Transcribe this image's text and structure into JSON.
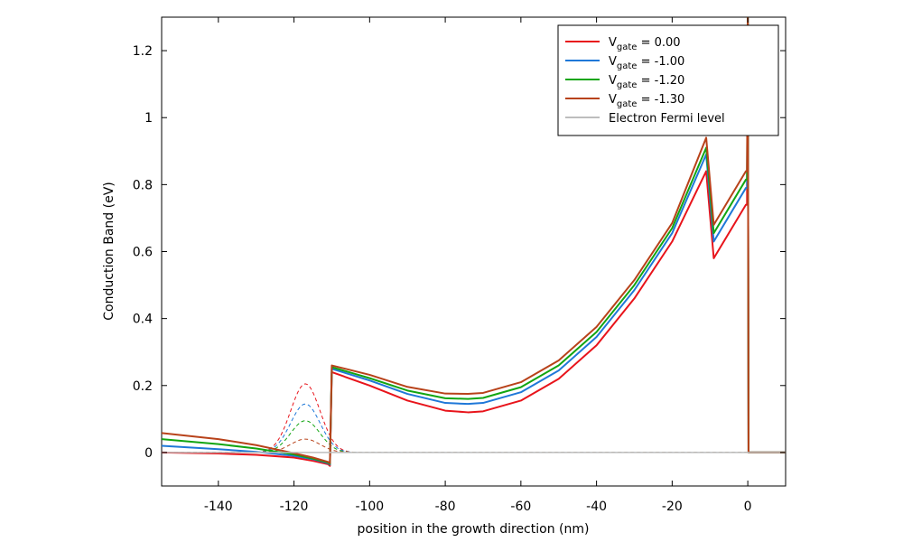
{
  "chart_data": {
    "type": "line",
    "title": "",
    "xlabel": "position in the growth direction (nm)",
    "ylabel": "Conduction Band (eV)",
    "xlim": [
      -155,
      10
    ],
    "ylim": [
      -0.1,
      1.3
    ],
    "grid": false,
    "legend_position": "top-right",
    "x_ticks": [
      -140,
      -120,
      -100,
      -80,
      -60,
      -40,
      -20,
      0
    ],
    "y_ticks": [
      0,
      0.2,
      0.4,
      0.6,
      0.8,
      1,
      1.2
    ],
    "x_tick_labels": [
      "-140",
      "-120",
      "-100",
      "-80",
      "-60",
      "-40",
      "-20",
      "0"
    ],
    "y_tick_labels": [
      "0",
      "0.2",
      "0.4",
      "0.6",
      "0.8",
      "1",
      "1.2"
    ],
    "series": [
      {
        "name": "V = 0.00",
        "legend_main": "V",
        "legend_sub": "gate",
        "legend_value": " =  0.00",
        "color": "#e8141b",
        "x": [
          -155,
          -140,
          -130,
          -120,
          -115,
          -111,
          -110.5,
          -110,
          -100,
          -90,
          -80,
          -74,
          -70,
          -60,
          -50,
          -40,
          -30,
          -20,
          -11,
          -9,
          -0.5,
          -0.2,
          0,
          0.2,
          10
        ],
        "y": [
          0.0,
          -0.003,
          -0.007,
          -0.015,
          -0.025,
          -0.035,
          -0.04,
          0.24,
          0.2,
          0.155,
          0.125,
          0.12,
          0.123,
          0.155,
          0.22,
          0.32,
          0.46,
          0.63,
          0.84,
          0.58,
          0.74,
          0.74,
          1.3,
          0,
          0
        ]
      },
      {
        "name": "V = -1.00",
        "legend_main": "V",
        "legend_sub": "gate",
        "legend_value": " = -1.00",
        "color": "#1f78d8",
        "x": [
          -155,
          -140,
          -130,
          -120,
          -115,
          -111,
          -110.5,
          -110,
          -100,
          -90,
          -80,
          -74,
          -70,
          -60,
          -50,
          -40,
          -30,
          -20,
          -11,
          -9,
          -0.5,
          -0.2,
          0,
          0.2,
          10
        ],
        "y": [
          0.02,
          0.01,
          0.002,
          -0.01,
          -0.02,
          -0.032,
          -0.036,
          0.25,
          0.215,
          0.175,
          0.148,
          0.145,
          0.148,
          0.18,
          0.245,
          0.345,
          0.485,
          0.655,
          0.89,
          0.63,
          0.79,
          0.79,
          1.3,
          0,
          0
        ]
      },
      {
        "name": "V = -1.20",
        "legend_main": "V",
        "legend_sub": "gate",
        "legend_value": " = -1.20",
        "color": "#12a512",
        "x": [
          -155,
          -140,
          -130,
          -120,
          -115,
          -111,
          -110.5,
          -110,
          -100,
          -90,
          -80,
          -74,
          -70,
          -60,
          -50,
          -40,
          -30,
          -20,
          -11,
          -9,
          -0.5,
          -0.2,
          0,
          0.2,
          10
        ],
        "y": [
          0.04,
          0.025,
          0.012,
          -0.006,
          -0.018,
          -0.03,
          -0.034,
          0.255,
          0.222,
          0.185,
          0.162,
          0.16,
          0.163,
          0.195,
          0.26,
          0.36,
          0.5,
          0.67,
          0.91,
          0.655,
          0.815,
          0.815,
          1.3,
          0,
          0
        ]
      },
      {
        "name": "V = -1.30",
        "legend_main": "V",
        "legend_sub": "gate",
        "legend_value": " = -1.30",
        "color": "#b8421a",
        "x": [
          -155,
          -140,
          -130,
          -120,
          -115,
          -111,
          -110.5,
          -110,
          -100,
          -90,
          -80,
          -74,
          -70,
          -60,
          -50,
          -40,
          -30,
          -20,
          -11,
          -9,
          -0.5,
          -0.2,
          0,
          0.2,
          10
        ],
        "y": [
          0.058,
          0.04,
          0.022,
          -0.002,
          -0.015,
          -0.028,
          -0.032,
          0.26,
          0.232,
          0.196,
          0.176,
          0.175,
          0.178,
          0.21,
          0.275,
          0.375,
          0.515,
          0.685,
          0.94,
          0.68,
          0.84,
          0.84,
          1.3,
          0,
          0
        ]
      },
      {
        "name": "Electron Fermi level",
        "legend_label": "Electron Fermi level",
        "color": "#bdbdbd",
        "x": [
          -155,
          10
        ],
        "y": [
          0,
          0
        ]
      }
    ],
    "wavefunctions": [
      {
        "color": "#e8141b",
        "peak_x": -117,
        "peak_y": 0.205,
        "width": 5.5
      },
      {
        "color": "#1f78d8",
        "peak_x": -117,
        "peak_y": 0.145,
        "width": 5.5
      },
      {
        "color": "#12a512",
        "peak_x": -117,
        "peak_y": 0.095,
        "width": 5.5
      },
      {
        "color": "#b8421a",
        "peak_x": -117,
        "peak_y": 0.04,
        "width": 5.5
      }
    ]
  }
}
